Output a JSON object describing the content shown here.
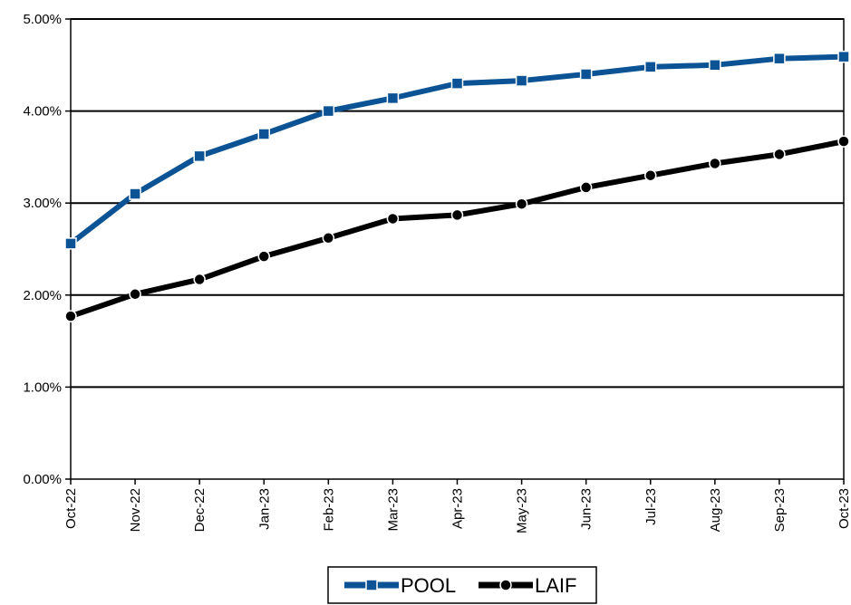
{
  "chart_data": {
    "type": "line",
    "title": "",
    "xlabel": "",
    "ylabel": "",
    "categories": [
      "Oct-22",
      "Nov-22",
      "Dec-22",
      "Jan-23",
      "Feb-23",
      "Mar-23",
      "Apr-23",
      "May-23",
      "Jun-23",
      "Jul-23",
      "Aug-23",
      "Sep-23",
      "Oct-23"
    ],
    "ylim": [
      0,
      5
    ],
    "yticks": [
      "0.00%",
      "1.00%",
      "2.00%",
      "3.00%",
      "4.00%",
      "5.00%"
    ],
    "grid": true,
    "legend_position": "bottom-center",
    "series": [
      {
        "name": "POOL",
        "color": "#0B5394",
        "marker": "square",
        "values": [
          2.56,
          3.1,
          3.51,
          3.75,
          4.0,
          4.14,
          4.3,
          4.33,
          4.4,
          4.48,
          4.5,
          4.57,
          4.59
        ]
      },
      {
        "name": "LAIF",
        "color": "#000000",
        "marker": "circle",
        "values": [
          1.77,
          2.01,
          2.17,
          2.42,
          2.62,
          2.83,
          2.87,
          2.99,
          3.17,
          3.3,
          3.43,
          3.53,
          3.67
        ]
      }
    ]
  }
}
